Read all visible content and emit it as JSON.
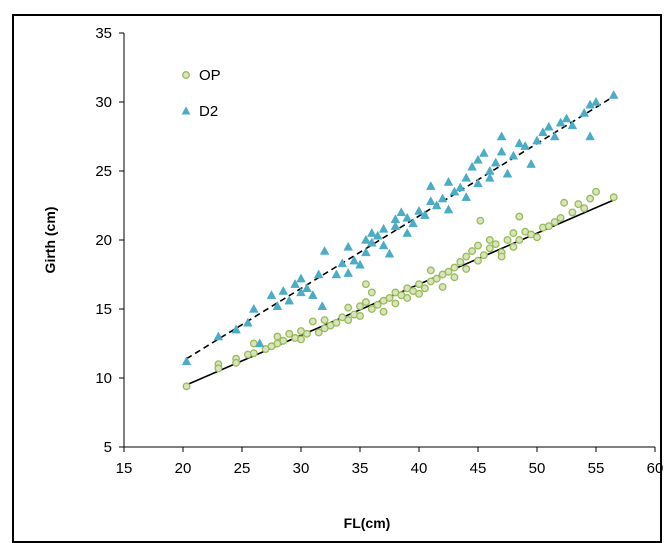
{
  "chart_data": {
    "type": "scatter",
    "xlabel": "FL(cm)",
    "ylabel": "Girth (cm)",
    "xlim": [
      15,
      60
    ],
    "ylim": [
      5,
      35
    ],
    "xticks": [
      15,
      20,
      25,
      30,
      35,
      40,
      45,
      50,
      55,
      60
    ],
    "yticks": [
      5,
      10,
      15,
      20,
      25,
      30,
      35
    ],
    "grid": false,
    "legend_position": "top-left",
    "series": [
      {
        "name": "OP",
        "marker": "circle",
        "color": "#9bbb59",
        "trendline": {
          "style": "solid",
          "color": "#000000",
          "from": [
            20.3,
            9.5
          ],
          "to": [
            56.5,
            22.9
          ]
        },
        "points": [
          [
            20.3,
            9.4
          ],
          [
            23,
            11
          ],
          [
            23,
            10.7
          ],
          [
            24.5,
            11.4
          ],
          [
            24.5,
            11.1
          ],
          [
            25.5,
            11.7
          ],
          [
            26,
            11.8
          ],
          [
            26,
            12.5
          ],
          [
            27,
            12.1
          ],
          [
            27.5,
            12.3
          ],
          [
            28,
            12.5
          ],
          [
            28,
            13
          ],
          [
            28.5,
            12.7
          ],
          [
            29,
            13.2
          ],
          [
            29.5,
            12.9
          ],
          [
            30,
            13.4
          ],
          [
            30,
            12.8
          ],
          [
            30.5,
            13.2
          ],
          [
            31,
            14.1
          ],
          [
            31.5,
            13.3
          ],
          [
            32,
            13.6
          ],
          [
            32,
            14.2
          ],
          [
            32.5,
            13.8
          ],
          [
            33,
            14
          ],
          [
            33.5,
            14.4
          ],
          [
            34,
            14.2
          ],
          [
            34,
            15.1
          ],
          [
            34.5,
            14.6
          ],
          [
            35,
            15.2
          ],
          [
            35,
            14.5
          ],
          [
            35.5,
            15.5
          ],
          [
            35.5,
            16.8
          ],
          [
            36,
            16.2
          ],
          [
            36,
            15
          ],
          [
            36.5,
            15.3
          ],
          [
            37,
            15.6
          ],
          [
            37,
            14.8
          ],
          [
            37.5,
            15.8
          ],
          [
            38,
            16.2
          ],
          [
            38,
            15.4
          ],
          [
            38.5,
            16
          ],
          [
            39,
            16.5
          ],
          [
            39,
            15.8
          ],
          [
            39.5,
            16.3
          ],
          [
            40,
            16.8
          ],
          [
            40,
            16.1
          ],
          [
            40.5,
            16.5
          ],
          [
            41,
            17
          ],
          [
            41,
            17.8
          ],
          [
            41.5,
            17.2
          ],
          [
            42,
            17.5
          ],
          [
            42,
            16.6
          ],
          [
            42.5,
            17.7
          ],
          [
            43,
            18
          ],
          [
            43,
            17.3
          ],
          [
            43.5,
            18.4
          ],
          [
            44,
            18.8
          ],
          [
            44,
            17.9
          ],
          [
            44.5,
            19.2
          ],
          [
            45,
            19.6
          ],
          [
            45,
            18.5
          ],
          [
            45.2,
            21.4
          ],
          [
            45.5,
            18.9
          ],
          [
            46,
            19.4
          ],
          [
            46,
            20
          ],
          [
            46.5,
            19.7
          ],
          [
            47,
            19.1
          ],
          [
            47,
            18.8
          ],
          [
            47.5,
            20
          ],
          [
            48,
            20.5
          ],
          [
            48,
            19.5
          ],
          [
            48.5,
            21.7
          ],
          [
            48.5,
            20
          ],
          [
            49,
            20.6
          ],
          [
            49.5,
            20.4
          ],
          [
            50,
            20.2
          ],
          [
            50.5,
            20.9
          ],
          [
            51,
            21
          ],
          [
            51.5,
            21.3
          ],
          [
            52,
            21.6
          ],
          [
            52.3,
            22.7
          ],
          [
            53,
            22
          ],
          [
            53.5,
            22.6
          ],
          [
            54,
            22.3
          ],
          [
            54.5,
            23
          ],
          [
            55,
            23.5
          ],
          [
            56.5,
            23.1
          ]
        ]
      },
      {
        "name": "D2",
        "marker": "triangle",
        "color": "#4bacc6",
        "trendline": {
          "style": "dashed",
          "color": "#000000",
          "from": [
            20.3,
            11.4
          ],
          "to": [
            56.5,
            30.4
          ]
        },
        "points": [
          [
            20.3,
            11.2
          ],
          [
            23,
            13
          ],
          [
            24.5,
            13.5
          ],
          [
            25.5,
            14
          ],
          [
            26,
            15
          ],
          [
            26.5,
            12.5
          ],
          [
            27.5,
            16
          ],
          [
            28,
            15.2
          ],
          [
            28.5,
            16.3
          ],
          [
            29,
            15.6
          ],
          [
            29.5,
            16.8
          ],
          [
            30,
            17.2
          ],
          [
            30,
            16.2
          ],
          [
            30.5,
            16.5
          ],
          [
            31,
            16
          ],
          [
            31.5,
            17.5
          ],
          [
            31.8,
            15.2
          ],
          [
            32,
            19.2
          ],
          [
            33,
            17.5
          ],
          [
            33.5,
            18.3
          ],
          [
            34,
            19.5
          ],
          [
            34,
            17.6
          ],
          [
            34.5,
            18.5
          ],
          [
            35,
            18.2
          ],
          [
            35.5,
            20
          ],
          [
            35.5,
            19.1
          ],
          [
            36,
            20.5
          ],
          [
            36,
            19.8
          ],
          [
            36.5,
            20.3
          ],
          [
            37,
            19.6
          ],
          [
            37,
            20.8
          ],
          [
            37.5,
            19
          ],
          [
            38,
            21.5
          ],
          [
            38,
            21
          ],
          [
            38.5,
            22
          ],
          [
            39,
            21.6
          ],
          [
            39,
            20.5
          ],
          [
            39.5,
            21.2
          ],
          [
            40,
            22.1
          ],
          [
            40.5,
            21.8
          ],
          [
            41,
            22.8
          ],
          [
            41,
            23.9
          ],
          [
            41.5,
            22.5
          ],
          [
            42,
            23
          ],
          [
            42.5,
            22.2
          ],
          [
            42.5,
            24.2
          ],
          [
            43,
            23.5
          ],
          [
            43.5,
            23.8
          ],
          [
            44,
            24.5
          ],
          [
            44,
            23.1
          ],
          [
            44.5,
            25.3
          ],
          [
            45,
            25.8
          ],
          [
            45,
            24.1
          ],
          [
            45.5,
            26.3
          ],
          [
            46,
            25
          ],
          [
            46,
            24.5
          ],
          [
            46.5,
            25.6
          ],
          [
            47,
            26.4
          ],
          [
            47,
            27.5
          ],
          [
            47.5,
            24.8
          ],
          [
            48,
            26.1
          ],
          [
            48.5,
            27
          ],
          [
            49,
            26.8
          ],
          [
            49.5,
            25.5
          ],
          [
            50,
            27.2
          ],
          [
            50.5,
            27.8
          ],
          [
            51,
            28.2
          ],
          [
            51.5,
            27.5
          ],
          [
            52,
            28.5
          ],
          [
            52.5,
            28.8
          ],
          [
            53,
            28.3
          ],
          [
            54,
            29.2
          ],
          [
            54.5,
            27.5
          ],
          [
            54.5,
            29.8
          ],
          [
            55,
            30
          ],
          [
            56.5,
            30.5
          ]
        ]
      }
    ]
  }
}
